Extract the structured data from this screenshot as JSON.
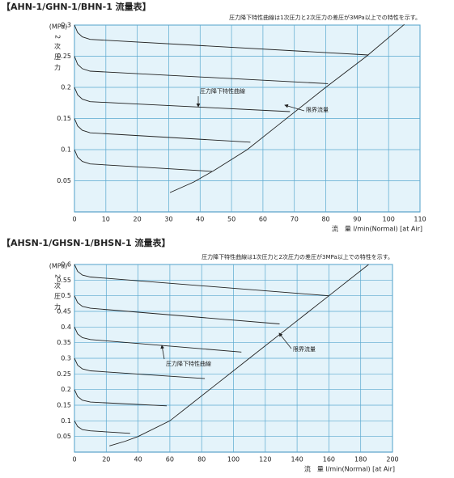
{
  "chart_data": [
    {
      "type": "line",
      "title": "【AHN-1/GHN-1/BHN-1 流量表】",
      "note": "圧力降下特性曲線は1次圧力と2次圧力の差圧が3MPa以上での特性を示す。",
      "ylabel_unit": "(MPa)",
      "ylabel": "2次圧力",
      "xlabel": "流　量 l/min(Normal) [at Air]",
      "annotations": [
        "圧力降下特性曲線",
        "限界流量"
      ],
      "xlim": [
        0,
        110
      ],
      "xticks": [
        0,
        10,
        20,
        30,
        40,
        50,
        60,
        70,
        80,
        90,
        100,
        110
      ],
      "ylim": [
        0,
        0.3
      ],
      "yticks": [
        0.05,
        0.1,
        0.15,
        0.2,
        0.25,
        0.3
      ],
      "grid": true,
      "series": [
        {
          "color": "#222222",
          "x": [
            0,
            1,
            2.5,
            5,
            93.6
          ],
          "values": [
            0.3,
            0.288,
            0.281,
            0.277,
            0.252
          ]
        },
        {
          "color": "#222222",
          "x": [
            0,
            1,
            2.5,
            5,
            80.7
          ],
          "values": [
            0.25,
            0.237,
            0.23,
            0.226,
            0.206
          ]
        },
        {
          "color": "#222222",
          "x": [
            0,
            1,
            2.5,
            5,
            68.6
          ],
          "values": [
            0.2,
            0.188,
            0.181,
            0.177,
            0.161
          ]
        },
        {
          "color": "#222222",
          "x": [
            0,
            1,
            2.5,
            5,
            56
          ],
          "values": [
            0.15,
            0.138,
            0.131,
            0.127,
            0.112
          ]
        },
        {
          "color": "#222222",
          "x": [
            0,
            1,
            2.5,
            5,
            43.8
          ],
          "values": [
            0.1,
            0.088,
            0.081,
            0.077,
            0.065
          ]
        },
        {
          "color": "#222222",
          "x": [
            30.4,
            38,
            44.6,
            55,
            65,
            80,
            93,
            105
          ],
          "values": [
            0.031,
            0.048,
            0.067,
            0.1,
            0.14,
            0.2,
            0.25,
            0.301
          ]
        }
      ]
    },
    {
      "type": "line",
      "title": "【AHSN-1/GHSN-1/BHSN-1 流量表】",
      "note": "圧力降下特性曲線は1次圧力と2次圧力の差圧が3MPa以上での特性を示す。",
      "ylabel_unit": "(MPa)",
      "ylabel": "2次圧力",
      "xlabel": "流　量 l/min(Normal) [at Air]",
      "annotations": [
        "圧力降下特性曲線",
        "限界流量"
      ],
      "xlim": [
        0,
        200
      ],
      "xticks": [
        0,
        20,
        40,
        60,
        80,
        100,
        120,
        140,
        160,
        180,
        200
      ],
      "ylim": [
        0,
        0.6
      ],
      "yticks": [
        0.05,
        0.1,
        0.15,
        0.2,
        0.25,
        0.3,
        0.35,
        0.4,
        0.45,
        0.5,
        0.55,
        0.6
      ],
      "grid": true,
      "series": [
        {
          "color": "#222222",
          "x": [
            0,
            2,
            5,
            10,
            160
          ],
          "values": [
            0.6,
            0.578,
            0.566,
            0.56,
            0.5
          ]
        },
        {
          "color": "#222222",
          "x": [
            0,
            2,
            5,
            10,
            129
          ],
          "values": [
            0.5,
            0.478,
            0.466,
            0.46,
            0.41
          ]
        },
        {
          "color": "#222222",
          "x": [
            0,
            2,
            5,
            10,
            105
          ],
          "values": [
            0.4,
            0.378,
            0.366,
            0.36,
            0.32
          ]
        },
        {
          "color": "#222222",
          "x": [
            0,
            2,
            5,
            10,
            82
          ],
          "values": [
            0.3,
            0.278,
            0.266,
            0.26,
            0.235
          ]
        },
        {
          "color": "#222222",
          "x": [
            0,
            2,
            5,
            10,
            58
          ],
          "values": [
            0.2,
            0.178,
            0.166,
            0.16,
            0.148
          ]
        },
        {
          "color": "#222222",
          "x": [
            0,
            2,
            5,
            10,
            35
          ],
          "values": [
            0.1,
            0.082,
            0.072,
            0.068,
            0.06
          ]
        },
        {
          "color": "#222222",
          "x": [
            22,
            32,
            40,
            60,
            85,
            110,
            135,
            160,
            185
          ],
          "values": [
            0.02,
            0.035,
            0.05,
            0.1,
            0.2,
            0.3,
            0.4,
            0.5,
            0.6
          ]
        }
      ]
    }
  ]
}
